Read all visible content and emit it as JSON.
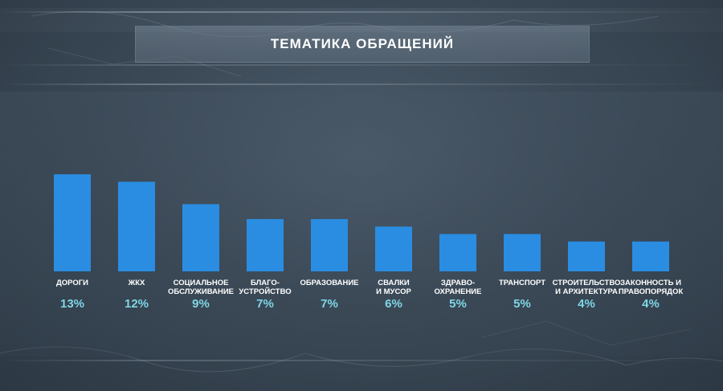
{
  "title": "ТЕМАТИКА ОБРАЩЕНИЙ",
  "colors": {
    "bar": "#2a8de2",
    "value_text": "#7fd6e6",
    "label_text": "#ffffff"
  },
  "chart_data": {
    "type": "bar",
    "title": "ТЕМАТИКА ОБРАЩЕНИЙ",
    "categories": [
      [
        "ДОРОГИ"
      ],
      [
        "ЖКХ"
      ],
      [
        "СОЦИАЛЬНОЕ",
        "ОБСЛУЖИВАНИЕ"
      ],
      [
        "БЛАГО-",
        "УСТРОЙСТВО"
      ],
      [
        "ОБРАЗОВАНИЕ"
      ],
      [
        "СВАЛКИ",
        "И МУСОР"
      ],
      [
        "ЗДРАВО-",
        "ОХРАНЕНИЕ"
      ],
      [
        "ТРАНСПОРТ"
      ],
      [
        "СТРОИТЕЛЬСТВО",
        "И АРХИТЕКТУРА"
      ],
      [
        "ЗАКОННОСТЬ И",
        "ПРАВОПОРЯДОК"
      ]
    ],
    "values": [
      13,
      12,
      9,
      7,
      7,
      6,
      5,
      5,
      4,
      4
    ],
    "value_labels": [
      "13%",
      "12%",
      "9%",
      "7%",
      "7%",
      "6%",
      "5%",
      "5%",
      "4%",
      "4%"
    ],
    "unit": "%",
    "grid": false,
    "legend": "none"
  }
}
